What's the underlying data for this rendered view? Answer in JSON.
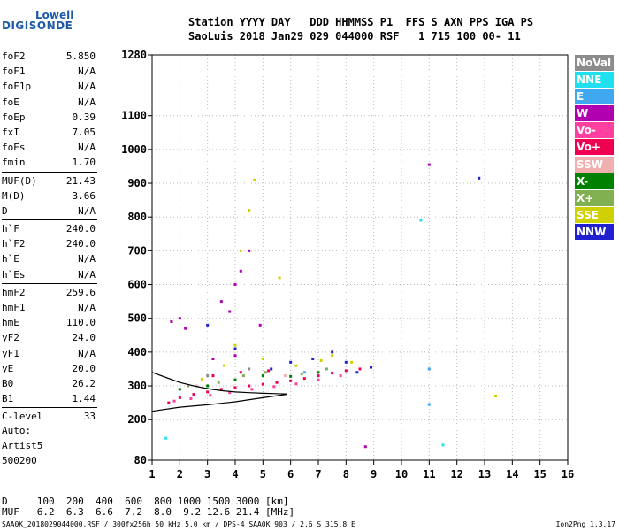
{
  "logo": {
    "top": "Lowell",
    "bottom": "DIGISONDE"
  },
  "header": {
    "line1": "Station YYYY DAY   DDD HHMMSS P1  FFS S AXN PPS IGA PS",
    "line2": "SaoLuis 2018 Jan29 029 044000 RSF   1 715 100 00- 11"
  },
  "params": [
    {
      "label": "foF2",
      "value": "5.850"
    },
    {
      "label": "foF1",
      "value": "N/A"
    },
    {
      "label": "foF1p",
      "value": "N/A"
    },
    {
      "label": "foE",
      "value": "N/A"
    },
    {
      "label": "foEp",
      "value": "0.39"
    },
    {
      "label": "fxI",
      "value": "7.05"
    },
    {
      "label": "foEs",
      "value": "N/A"
    },
    {
      "label": "fmin",
      "value": "1.70"
    },
    {
      "label": "MUF(D)",
      "value": "21.43"
    },
    {
      "label": "M(D)",
      "value": "3.66"
    },
    {
      "label": "D",
      "value": "N/A"
    },
    {
      "label": "h`F",
      "value": "240.0"
    },
    {
      "label": "h`F2",
      "value": "240.0"
    },
    {
      "label": "h`E",
      "value": "N/A"
    },
    {
      "label": "h`Es",
      "value": "N/A"
    },
    {
      "label": "hmF2",
      "value": "259.6"
    },
    {
      "label": "hmF1",
      "value": "N/A"
    },
    {
      "label": "hmE",
      "value": "110.0"
    },
    {
      "label": "yF2",
      "value": "24.0"
    },
    {
      "label": "yF1",
      "value": "N/A"
    },
    {
      "label": "yE",
      "value": "20.0"
    },
    {
      "label": "B0",
      "value": "26.2"
    },
    {
      "label": "B1",
      "value": "1.44"
    },
    {
      "label": "C-level",
      "value": "33"
    }
  ],
  "auto": {
    "line1": "Auto:",
    "line2": "Artist5",
    "line3": "500200"
  },
  "legend": [
    {
      "name": "NoVal",
      "color": "#8c8c8c"
    },
    {
      "name": "NNE",
      "color": "#20e0f0"
    },
    {
      "name": "E",
      "color": "#40a8f0"
    },
    {
      "name": "W",
      "color": "#b000b0"
    },
    {
      "name": "Vo-",
      "color": "#ff40a0"
    },
    {
      "name": "Vo+",
      "color": "#f00050"
    },
    {
      "name": "SSW",
      "color": "#f0b0b0"
    },
    {
      "name": "X-",
      "color": "#008000"
    },
    {
      "name": "X+",
      "color": "#80b050"
    },
    {
      "name": "SSE",
      "color": "#d0d000"
    },
    {
      "name": "NNW",
      "color": "#2020d0"
    }
  ],
  "bottom": {
    "line1": "D     100  200  400  600  800 1000 1500 3000 [km]",
    "line2": "MUF   6.2  6.3  6.6  7.2  8.0  9.2 12.6 21.4 [MHz]"
  },
  "footer": "SAA0K_2018029044000.RSF / 300fx256h 50 kHz 5.0 km / DPS-4 SAA0K 903 / 2.6 S 315.8 E",
  "version": "Ion2Png 1.3.17",
  "chart_data": {
    "type": "scatter",
    "title": "",
    "xlabel": "",
    "ylabel": "",
    "x_ticks": [
      1,
      2,
      3,
      4,
      5,
      6,
      7,
      8,
      9,
      10,
      11,
      12,
      13,
      14,
      15,
      16
    ],
    "y_ticks": [
      80,
      200,
      300,
      400,
      500,
      600,
      700,
      800,
      900,
      1000,
      1100,
      1280
    ],
    "xlim": [
      1,
      16
    ],
    "ylim": [
      80,
      1280
    ],
    "grid": true,
    "legend_position": "right",
    "series": [
      {
        "name": "Vo+",
        "color": "#f00050",
        "points": [
          [
            1.6,
            250
          ],
          [
            2.0,
            265
          ],
          [
            2.5,
            275
          ],
          [
            3.0,
            282
          ],
          [
            3.5,
            290
          ],
          [
            4.0,
            295
          ],
          [
            4.5,
            300
          ],
          [
            5.0,
            305
          ],
          [
            5.5,
            310
          ],
          [
            6.0,
            315
          ],
          [
            6.5,
            322
          ],
          [
            7.0,
            330
          ],
          [
            7.5,
            338
          ],
          [
            8.0,
            345
          ],
          [
            8.5,
            350
          ],
          [
            3.2,
            330
          ],
          [
            4.2,
            340
          ],
          [
            5.2,
            345
          ]
        ]
      },
      {
        "name": "Vo-",
        "color": "#ff40a0",
        "points": [
          [
            1.8,
            255
          ],
          [
            2.4,
            262
          ],
          [
            3.1,
            272
          ],
          [
            3.8,
            280
          ],
          [
            4.6,
            290
          ],
          [
            5.4,
            298
          ],
          [
            6.2,
            306
          ],
          [
            7.0,
            318
          ],
          [
            7.8,
            330
          ]
        ]
      },
      {
        "name": "W",
        "color": "#b000b0",
        "points": [
          [
            1.7,
            490
          ],
          [
            2.0,
            500
          ],
          [
            2.2,
            470
          ],
          [
            3.5,
            550
          ],
          [
            3.8,
            520
          ],
          [
            4.0,
            600
          ],
          [
            4.2,
            640
          ],
          [
            4.5,
            700
          ],
          [
            3.2,
            380
          ],
          [
            4.0,
            390
          ],
          [
            11.0,
            955
          ],
          [
            8.7,
            120
          ],
          [
            4.9,
            480
          ]
        ]
      },
      {
        "name": "SSE",
        "color": "#d0d000",
        "points": [
          [
            2.8,
            320
          ],
          [
            3.6,
            360
          ],
          [
            4.0,
            420
          ],
          [
            4.2,
            700
          ],
          [
            4.5,
            820
          ],
          [
            4.7,
            910
          ],
          [
            5.0,
            380
          ],
          [
            5.6,
            620
          ],
          [
            6.2,
            360
          ],
          [
            7.1,
            375
          ],
          [
            7.5,
            390
          ],
          [
            8.2,
            370
          ],
          [
            13.4,
            270
          ]
        ]
      },
      {
        "name": "NNW",
        "color": "#2020d0",
        "points": [
          [
            5.3,
            350
          ],
          [
            6.0,
            370
          ],
          [
            6.8,
            380
          ],
          [
            7.5,
            400
          ],
          [
            8.0,
            370
          ],
          [
            8.4,
            340
          ],
          [
            8.9,
            355
          ],
          [
            3.0,
            480
          ],
          [
            12.8,
            915
          ],
          [
            4.0,
            410
          ]
        ]
      },
      {
        "name": "X+",
        "color": "#80b050",
        "points": [
          [
            2.3,
            300
          ],
          [
            3.4,
            310
          ],
          [
            4.3,
            330
          ],
          [
            5.1,
            340
          ],
          [
            6.4,
            335
          ],
          [
            7.3,
            350
          ]
        ]
      },
      {
        "name": "X-",
        "color": "#008000",
        "points": [
          [
            2.0,
            290
          ],
          [
            3.0,
            300
          ],
          [
            4.0,
            318
          ],
          [
            5.0,
            330
          ],
          [
            6.0,
            328
          ],
          [
            7.0,
            340
          ]
        ]
      },
      {
        "name": "E",
        "color": "#40a8f0",
        "points": [
          [
            11.0,
            245
          ],
          [
            11.0,
            350
          ],
          [
            6.5,
            340
          ]
        ]
      },
      {
        "name": "NNE",
        "color": "#20e0f0",
        "points": [
          [
            10.7,
            790
          ],
          [
            11.5,
            125
          ],
          [
            1.5,
            145
          ]
        ]
      },
      {
        "name": "SSW",
        "color": "#f0b0b0",
        "points": [
          [
            2.6,
            300
          ],
          [
            5.8,
            330
          ]
        ]
      },
      {
        "name": "NoVal",
        "color": "#8c8c8c",
        "points": [
          [
            3.0,
            330
          ],
          [
            4.5,
            350
          ]
        ]
      }
    ],
    "traces": [
      {
        "name": "profile",
        "color": "#000000",
        "points": [
          [
            1.0,
            225
          ],
          [
            2.0,
            237
          ],
          [
            3.0,
            244
          ],
          [
            4.0,
            253
          ],
          [
            5.0,
            265
          ],
          [
            5.85,
            275
          ]
        ]
      },
      {
        "name": "trace",
        "color": "#000000",
        "points": [
          [
            1.0,
            340
          ],
          [
            1.5,
            325
          ],
          [
            2.0,
            310
          ],
          [
            2.5,
            300
          ],
          [
            3.0,
            292
          ],
          [
            3.5,
            286
          ],
          [
            4.0,
            282
          ],
          [
            4.5,
            280
          ],
          [
            5.0,
            278
          ],
          [
            5.5,
            277
          ],
          [
            5.85,
            276
          ]
        ]
      }
    ]
  }
}
